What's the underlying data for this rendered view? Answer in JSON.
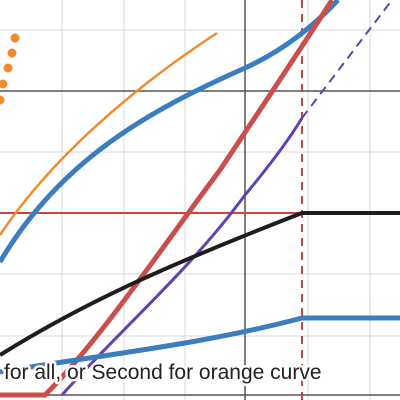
{
  "hint": {
    "text": "for all, or Second for orange curve"
  }
}
